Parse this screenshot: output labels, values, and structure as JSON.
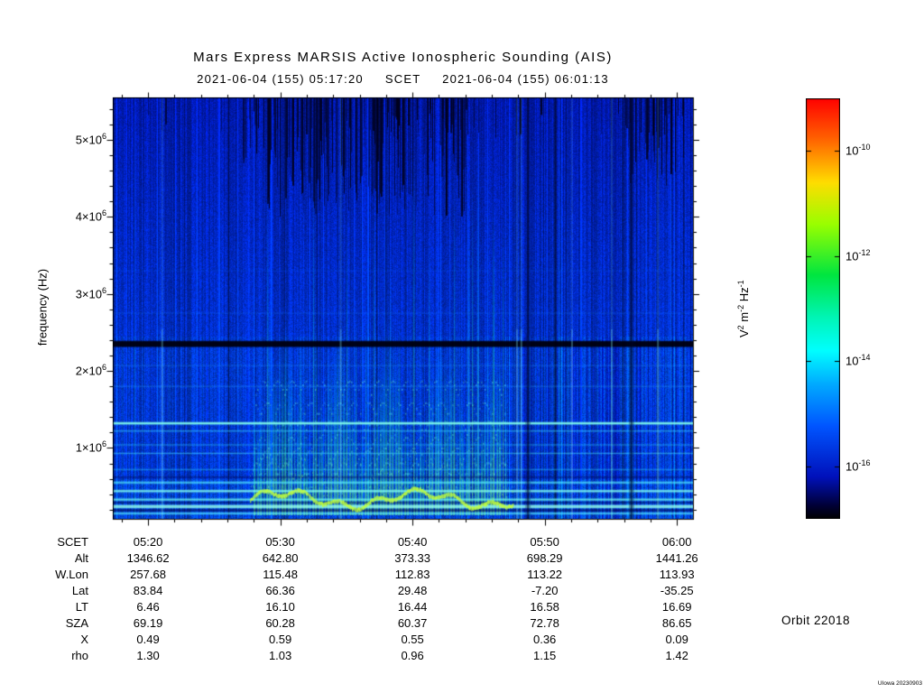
{
  "title": "Mars Express MARSIS Active Ionospheric Sounding (AIS)",
  "subtitle": "2021-06-04 (155) 05:17:20     SCET     2021-06-04 (155) 06:01:13",
  "orbit_label": "Orbit 22018",
  "version_label": "UIowa 20230903",
  "chart_data": {
    "type": "heatmap",
    "title": "Mars Express MARSIS Active Ionospheric Sounding (AIS)",
    "date": "2021-06-04",
    "doy": "155",
    "scet_start": "05:17:20",
    "scet_end": "06:01:13",
    "ylabel": "frequency (Hz)",
    "y_range_hz": [
      80000,
      5550000
    ],
    "y_ticks": [
      {
        "base": "1×10",
        "exp": "6",
        "hz": 1000000
      },
      {
        "base": "2×10",
        "exp": "6",
        "hz": 2000000
      },
      {
        "base": "3×10",
        "exp": "6",
        "hz": 3000000
      },
      {
        "base": "4×10",
        "exp": "6",
        "hz": 4000000
      },
      {
        "base": "5×10",
        "exp": "6",
        "hz": 5000000
      }
    ],
    "x_ticks": [
      "05:20",
      "05:30",
      "05:40",
      "05:50",
      "06:00"
    ],
    "x_minor_interval_s": 120,
    "y_minor_interval_hz": 200000,
    "colorbar": {
      "label_parts": [
        {
          "t": "V",
          "e": "2"
        },
        {
          "t": " m",
          "e": "-2"
        },
        {
          "t": " Hz",
          "e": "-1"
        }
      ],
      "ticks": [
        {
          "base": "10",
          "exp": "-10"
        },
        {
          "base": "10",
          "exp": "-12"
        },
        {
          "base": "10",
          "exp": "-14"
        },
        {
          "base": "10",
          "exp": "-16"
        }
      ],
      "exp_top": -9,
      "exp_bottom": -17,
      "gradient": [
        [
          0,
          "#ff0000"
        ],
        [
          0.1,
          "#ff6600"
        ],
        [
          0.2,
          "#ffdd00"
        ],
        [
          0.3,
          "#99ff00"
        ],
        [
          0.42,
          "#00e640"
        ],
        [
          0.52,
          "#00f5b4"
        ],
        [
          0.6,
          "#00ffff"
        ],
        [
          0.68,
          "#00aaff"
        ],
        [
          0.78,
          "#0055ff"
        ],
        [
          0.9,
          "#0011bb"
        ],
        [
          0.97,
          "#000033"
        ],
        [
          1,
          "#000000"
        ]
      ]
    },
    "features": {
      "band_split_hz": 2450000,
      "upper_rgb": [
        0,
        24,
        170
      ],
      "lower_rgb": [
        0,
        52,
        202
      ],
      "h_lines": [
        {
          "mhz": 1.22,
          "rgb": [
            60,
            215,
            255
          ],
          "w": 1,
          "a": 0.45
        },
        {
          "mhz": 1.04,
          "rgb": [
            50,
            205,
            255
          ],
          "w": 1,
          "a": 0.35
        },
        {
          "mhz": 0.93,
          "rgb": [
            70,
            225,
            255
          ],
          "w": 1,
          "a": 0.4
        },
        {
          "mhz": 0.72,
          "rgb": [
            50,
            210,
            255
          ],
          "w": 1,
          "a": 0.35
        },
        {
          "mhz": 0.62,
          "rgb": [
            0,
            10,
            90
          ],
          "w": 1,
          "a": 0.5
        },
        {
          "mhz": 0.55,
          "rgb": [
            90,
            240,
            255
          ],
          "w": 2,
          "a": 0.55
        },
        {
          "mhz": 0.44,
          "rgb": [
            130,
            255,
            240
          ],
          "w": 2,
          "a": 0.75
        },
        {
          "mhz": 0.33,
          "rgb": [
            110,
            250,
            240
          ],
          "w": 2,
          "a": 0.65
        },
        {
          "mhz": 0.29,
          "rgb": [
            0,
            8,
            80
          ],
          "w": 1,
          "a": 0.5
        },
        {
          "mhz": 0.24,
          "rgb": [
            150,
            255,
            235
          ],
          "w": 3,
          "a": 0.75
        },
        {
          "mhz": 0.19,
          "rgb": [
            0,
            8,
            80
          ],
          "w": 2,
          "a": 0.5
        },
        {
          "mhz": 0.15,
          "rgb": [
            90,
            235,
            255
          ],
          "w": 2,
          "a": 0.55
        },
        {
          "mhz": 1.8,
          "rgb": [
            40,
            160,
            255
          ],
          "w": 1,
          "a": 0.28
        },
        {
          "mhz": 2.07,
          "rgb": [
            40,
            150,
            255
          ],
          "w": 1,
          "a": 0.22
        },
        {
          "mhz": 2.75,
          "rgb": [
            30,
            120,
            255
          ],
          "w": 1,
          "a": 0.18
        },
        {
          "mhz": 3.3,
          "rgb": [
            30,
            110,
            255
          ],
          "w": 1,
          "a": 0.13
        },
        {
          "mhz": 1.32,
          "rgb": [
            130,
            255,
            235
          ],
          "w": 2,
          "a": 0.85
        },
        {
          "mhz": 2.35,
          "rgb": [
            0,
            0,
            14
          ],
          "w": 6,
          "a": 0.93
        }
      ],
      "sounding": {
        "t0": "05:28:00",
        "t1": "05:47:00",
        "stripe_rgb": [
          40,
          225,
          165
        ],
        "harmonics_mhz": [
          0.5,
          0.64,
          0.8,
          0.97,
          1.18,
          1.42,
          1.7
        ],
        "echo_mhz": 0.34,
        "echo_rgb": [
          195,
          255,
          60
        ]
      },
      "dark_top": [
        {
          "t0": "05:27:00",
          "t1": "05:44:00",
          "density": 0.5,
          "max_len": 120
        },
        {
          "t0": "05:56:00",
          "t1": "06:00:30",
          "density": 0.55,
          "max_len": 85
        },
        {
          "t0": "05:17:20",
          "t1": "06:01:13",
          "density": 0.05,
          "max_len": 35
        }
      ],
      "dark_cols": [
        "05:48:40",
        "05:56:30"
      ],
      "bright_cols": [
        "05:21:00",
        "05:34:30",
        "05:47:50",
        "05:48:10",
        "05:52:00",
        "05:55:00",
        "05:58:30"
      ]
    }
  },
  "table": {
    "rows": [
      {
        "label": "SCET",
        "values": [
          "05:20",
          "05:30",
          "05:40",
          "05:50",
          "06:00"
        ]
      },
      {
        "label": "Alt",
        "values": [
          "1346.62",
          "642.80",
          "373.33",
          "698.29",
          "1441.26"
        ]
      },
      {
        "label": "W.Lon",
        "values": [
          "257.68",
          "115.48",
          "112.83",
          "113.22",
          "113.93"
        ]
      },
      {
        "label": "Lat",
        "values": [
          "83.84",
          "66.36",
          "29.48",
          "-7.20",
          "-35.25"
        ]
      },
      {
        "label": "LT",
        "values": [
          "6.46",
          "16.10",
          "16.44",
          "16.58",
          "16.69"
        ]
      },
      {
        "label": "SZA",
        "values": [
          "69.19",
          "60.28",
          "60.37",
          "72.78",
          "86.65"
        ]
      },
      {
        "label": "X",
        "values": [
          "0.49",
          "0.59",
          "0.55",
          "0.36",
          "0.09"
        ]
      },
      {
        "label": "rho",
        "values": [
          "1.30",
          "1.03",
          "0.96",
          "1.15",
          "1.42"
        ]
      }
    ]
  }
}
